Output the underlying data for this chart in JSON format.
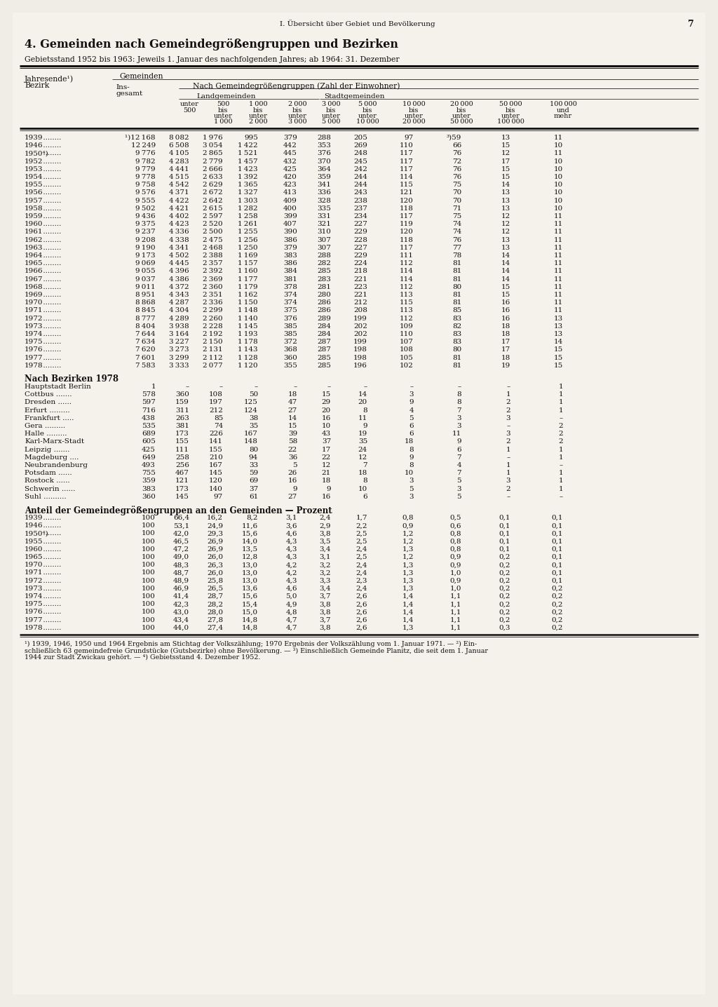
{
  "page_header": "I. Übersicht über Gebiet und Bevölkerung",
  "page_number": "7",
  "section_title": "4. Gemeinden nach Gemeindegrößengruppen und Bezirken",
  "subtitle": "Gebietsstand 1952 bis 1963: Jeweils 1. Januar des nachfolgenden Jahres; ab 1964: 31. Dezember",
  "main_data": [
    [
      "1939",
      "¹)12 168",
      "8 082",
      "1 976",
      "995",
      "379",
      "288",
      "205",
      "97",
      "³)59",
      "13",
      "11"
    ],
    [
      "1946",
      "12 249",
      "6 508",
      "3 054",
      "1 422",
      "442",
      "353",
      "269",
      "110",
      "66",
      "15",
      "10"
    ],
    [
      "1950⁴)",
      "9 776",
      "4 105",
      "2 865",
      "1 521",
      "445",
      "376",
      "248",
      "117",
      "76",
      "12",
      "11"
    ],
    [
      "1952",
      "9 782",
      "4 283",
      "2 779",
      "1 457",
      "432",
      "370",
      "245",
      "117",
      "72",
      "17",
      "10"
    ],
    [
      "1953",
      "9 779",
      "4 441",
      "2 666",
      "1 423",
      "425",
      "364",
      "242",
      "117",
      "76",
      "15",
      "10"
    ],
    [
      "1954",
      "9 778",
      "4 515",
      "2 633",
      "1 392",
      "420",
      "359",
      "244",
      "114",
      "76",
      "15",
      "10"
    ],
    [
      "1955",
      "9 758",
      "4 542",
      "2 629",
      "1 365",
      "423",
      "341",
      "244",
      "115",
      "75",
      "14",
      "10"
    ],
    [
      "1956",
      "9 576",
      "4 371",
      "2 672",
      "1 327",
      "413",
      "336",
      "243",
      "121",
      "70",
      "13",
      "10"
    ],
    [
      "1957",
      "9 555",
      "4 422",
      "2 642",
      "1 303",
      "409",
      "328",
      "238",
      "120",
      "70",
      "13",
      "10"
    ],
    [
      "1958",
      "9 502",
      "4 421",
      "2 615",
      "1 282",
      "400",
      "335",
      "237",
      "118",
      "71",
      "13",
      "10"
    ],
    [
      "1959",
      "9 436",
      "4 402",
      "2 597",
      "1 258",
      "399",
      "331",
      "234",
      "117",
      "75",
      "12",
      "11"
    ],
    [
      "1960",
      "9 375",
      "4 423",
      "2 520",
      "1 261",
      "407",
      "321",
      "227",
      "119",
      "74",
      "12",
      "11"
    ],
    [
      "1961",
      "9 237",
      "4 336",
      "2 500",
      "1 255",
      "390",
      "310",
      "229",
      "120",
      "74",
      "12",
      "11"
    ],
    [
      "1962",
      "9 208",
      "4 338",
      "2 475",
      "1 256",
      "386",
      "307",
      "228",
      "118",
      "76",
      "13",
      "11"
    ],
    [
      "1963",
      "9 190",
      "4 341",
      "2 468",
      "1 250",
      "379",
      "307",
      "227",
      "117",
      "77",
      "13",
      "11"
    ],
    [
      "1964",
      "9 173",
      "4 502",
      "2 388",
      "1 169",
      "383",
      "288",
      "229",
      "111",
      "78",
      "14",
      "11"
    ],
    [
      "1965",
      "9 069",
      "4 445",
      "2 357",
      "1 157",
      "386",
      "282",
      "224",
      "112",
      "81",
      "14",
      "11"
    ],
    [
      "1966",
      "9 055",
      "4 396",
      "2 392",
      "1 160",
      "384",
      "285",
      "218",
      "114",
      "81",
      "14",
      "11"
    ],
    [
      "1967",
      "9 037",
      "4 386",
      "2 369",
      "1 177",
      "381",
      "283",
      "221",
      "114",
      "81",
      "14",
      "11"
    ],
    [
      "1968",
      "9 011",
      "4 372",
      "2 360",
      "1 179",
      "378",
      "281",
      "223",
      "112",
      "80",
      "15",
      "11"
    ],
    [
      "1969",
      "8 951",
      "4 343",
      "2 351",
      "1 162",
      "374",
      "280",
      "221",
      "113",
      "81",
      "15",
      "11"
    ],
    [
      "1970",
      "8 868",
      "4 287",
      "2 336",
      "1 150",
      "374",
      "286",
      "212",
      "115",
      "81",
      "16",
      "11"
    ],
    [
      "1971",
      "8 845",
      "4 304",
      "2 299",
      "1 148",
      "375",
      "286",
      "208",
      "113",
      "85",
      "16",
      "11"
    ],
    [
      "1972",
      "8 777",
      "4 289",
      "2 260",
      "1 140",
      "376",
      "289",
      "199",
      "112",
      "83",
      "16",
      "13"
    ],
    [
      "1973",
      "8 404",
      "3 938",
      "2 228",
      "1 145",
      "385",
      "284",
      "202",
      "109",
      "82",
      "18",
      "13"
    ],
    [
      "1974",
      "7 644",
      "3 164",
      "2 192",
      "1 193",
      "385",
      "284",
      "202",
      "110",
      "83",
      "18",
      "13"
    ],
    [
      "1975",
      "7 634",
      "3 227",
      "2 150",
      "1 178",
      "372",
      "287",
      "199",
      "107",
      "83",
      "17",
      "14"
    ],
    [
      "1976",
      "7 620",
      "3 273",
      "2 131",
      "1 143",
      "368",
      "287",
      "198",
      "108",
      "80",
      "17",
      "15"
    ],
    [
      "1977",
      "7 601",
      "3 299",
      "2 112",
      "1 128",
      "360",
      "285",
      "198",
      "105",
      "81",
      "18",
      "15"
    ],
    [
      "1978",
      "7 583",
      "3 333",
      "2 077",
      "1 120",
      "355",
      "285",
      "196",
      "102",
      "81",
      "19",
      "15"
    ]
  ],
  "bezirk_data": [
    [
      "Hauptstadt Berlin",
      "1",
      "–",
      "–",
      "–",
      "–",
      "–",
      "–",
      "–",
      "–",
      "–",
      "1"
    ],
    [
      "Cottbus .......",
      "578",
      "360",
      "108",
      "50",
      "18",
      "15",
      "14",
      "3",
      "8",
      "1",
      "1"
    ],
    [
      "Dresden ......",
      "597",
      "159",
      "197",
      "125",
      "47",
      "29",
      "20",
      "9",
      "8",
      "2",
      "1"
    ],
    [
      "Erfurt .........",
      "716",
      "311",
      "212",
      "124",
      "27",
      "20",
      "8",
      "4",
      "7",
      "2",
      "1"
    ],
    [
      "Frankfurt .....",
      "438",
      "263",
      "85",
      "38",
      "14",
      "16",
      "11",
      "5",
      "3",
      "3",
      "–"
    ],
    [
      "Gera .........",
      "535",
      "381",
      "74",
      "35",
      "15",
      "10",
      "9",
      "6",
      "3",
      "–",
      "2"
    ],
    [
      "Halle .........",
      "689",
      "173",
      "226",
      "167",
      "39",
      "43",
      "19",
      "6",
      "11",
      "3",
      "2"
    ],
    [
      "Karl-Marx-Stadt",
      "605",
      "155",
      "141",
      "148",
      "58",
      "37",
      "35",
      "18",
      "9",
      "2",
      "2"
    ],
    [
      "Leipzig .......",
      "425",
      "111",
      "155",
      "80",
      "22",
      "17",
      "24",
      "8",
      "6",
      "1",
      "1"
    ],
    [
      "Magdeburg ....",
      "649",
      "258",
      "210",
      "94",
      "36",
      "22",
      "12",
      "9",
      "7",
      "–",
      "1"
    ],
    [
      "Neubrandenburg",
      "493",
      "256",
      "167",
      "33",
      "5",
      "12",
      "7",
      "8",
      "4",
      "1",
      "–"
    ],
    [
      "Potsdam ......",
      "755",
      "467",
      "145",
      "59",
      "26",
      "21",
      "18",
      "10",
      "7",
      "1",
      "1"
    ],
    [
      "Rostock ......",
      "359",
      "121",
      "120",
      "69",
      "16",
      "18",
      "8",
      "3",
      "5",
      "3",
      "1"
    ],
    [
      "Schwerin ......",
      "383",
      "173",
      "140",
      "37",
      "9",
      "9",
      "10",
      "5",
      "3",
      "2",
      "1"
    ],
    [
      "Suhl ..........",
      "360",
      "145",
      "97",
      "61",
      "27",
      "16",
      "6",
      "3",
      "5",
      "–",
      "–"
    ]
  ],
  "percent_data": [
    [
      "1939",
      "100",
      "66,4",
      "16,2",
      "8,2",
      "3,1",
      "2,4",
      "1,7",
      "0,8",
      "0,5",
      "0,1",
      "0,1"
    ],
    [
      "1946",
      "100",
      "53,1",
      "24,9",
      "11,6",
      "3,6",
      "2,9",
      "2,2",
      "0,9",
      "0,6",
      "0,1",
      "0,1"
    ],
    [
      "1950⁴)",
      "100",
      "42,0",
      "29,3",
      "15,6",
      "4,6",
      "3,8",
      "2,5",
      "1,2",
      "0,8",
      "0,1",
      "0,1"
    ],
    [
      "1955",
      "100",
      "46,5",
      "26,9",
      "14,0",
      "4,3",
      "3,5",
      "2,5",
      "1,2",
      "0,8",
      "0,1",
      "0,1"
    ],
    [
      "1960",
      "100",
      "47,2",
      "26,9",
      "13,5",
      "4,3",
      "3,4",
      "2,4",
      "1,3",
      "0,8",
      "0,1",
      "0,1"
    ],
    [
      "1965",
      "100",
      "49,0",
      "26,0",
      "12,8",
      "4,3",
      "3,1",
      "2,5",
      "1,2",
      "0,9",
      "0,2",
      "0,1"
    ],
    [
      "1970",
      "100",
      "48,3",
      "26,3",
      "13,0",
      "4,2",
      "3,2",
      "2,4",
      "1,3",
      "0,9",
      "0,2",
      "0,1"
    ],
    [
      "1971",
      "100",
      "48,7",
      "26,0",
      "13,0",
      "4,2",
      "3,2",
      "2,4",
      "1,3",
      "1,0",
      "0,2",
      "0,1"
    ],
    [
      "1972",
      "100",
      "48,9",
      "25,8",
      "13,0",
      "4,3",
      "3,3",
      "2,3",
      "1,3",
      "0,9",
      "0,2",
      "0,1"
    ],
    [
      "1973",
      "100",
      "46,9",
      "26,5",
      "13,6",
      "4,6",
      "3,4",
      "2,4",
      "1,3",
      "1,0",
      "0,2",
      "0,2"
    ],
    [
      "1974",
      "100",
      "41,4",
      "28,7",
      "15,6",
      "5,0",
      "3,7",
      "2,6",
      "1,4",
      "1,1",
      "0,2",
      "0,2"
    ],
    [
      "1975",
      "100",
      "42,3",
      "28,2",
      "15,4",
      "4,9",
      "3,8",
      "2,6",
      "1,4",
      "1,1",
      "0,2",
      "0,2"
    ],
    [
      "1976",
      "100",
      "43,0",
      "28,0",
      "15,0",
      "4,8",
      "3,8",
      "2,6",
      "1,4",
      "1,1",
      "0,2",
      "0,2"
    ],
    [
      "1977",
      "100",
      "43,4",
      "27,8",
      "14,8",
      "4,7",
      "3,7",
      "2,6",
      "1,4",
      "1,1",
      "0,2",
      "0,2"
    ],
    [
      "1978",
      "100",
      "44,0",
      "27,4",
      "14,8",
      "4,7",
      "3,8",
      "2,6",
      "1,3",
      "1,1",
      "0,3",
      "0,2"
    ]
  ],
  "footnotes": [
    "¹) 1939, 1946, 1950 und 1964 Ergebnis am Stichtag der Volkszählung; 1970 Ergebnis der Volkszählung vom 1. Januar 1971. — ²) Ein-",
    "schließlich 63 gemeindefreie Grundstücke (Gutsbezirke) ohne Bevölkerung. — ³) Einschließlich Gemeinde Planitz, die seit dem 1. Januar",
    "1944 zur Stadt Zwickau gehört. — ⁴) Gebietsstand 4. Dezember 1952."
  ]
}
